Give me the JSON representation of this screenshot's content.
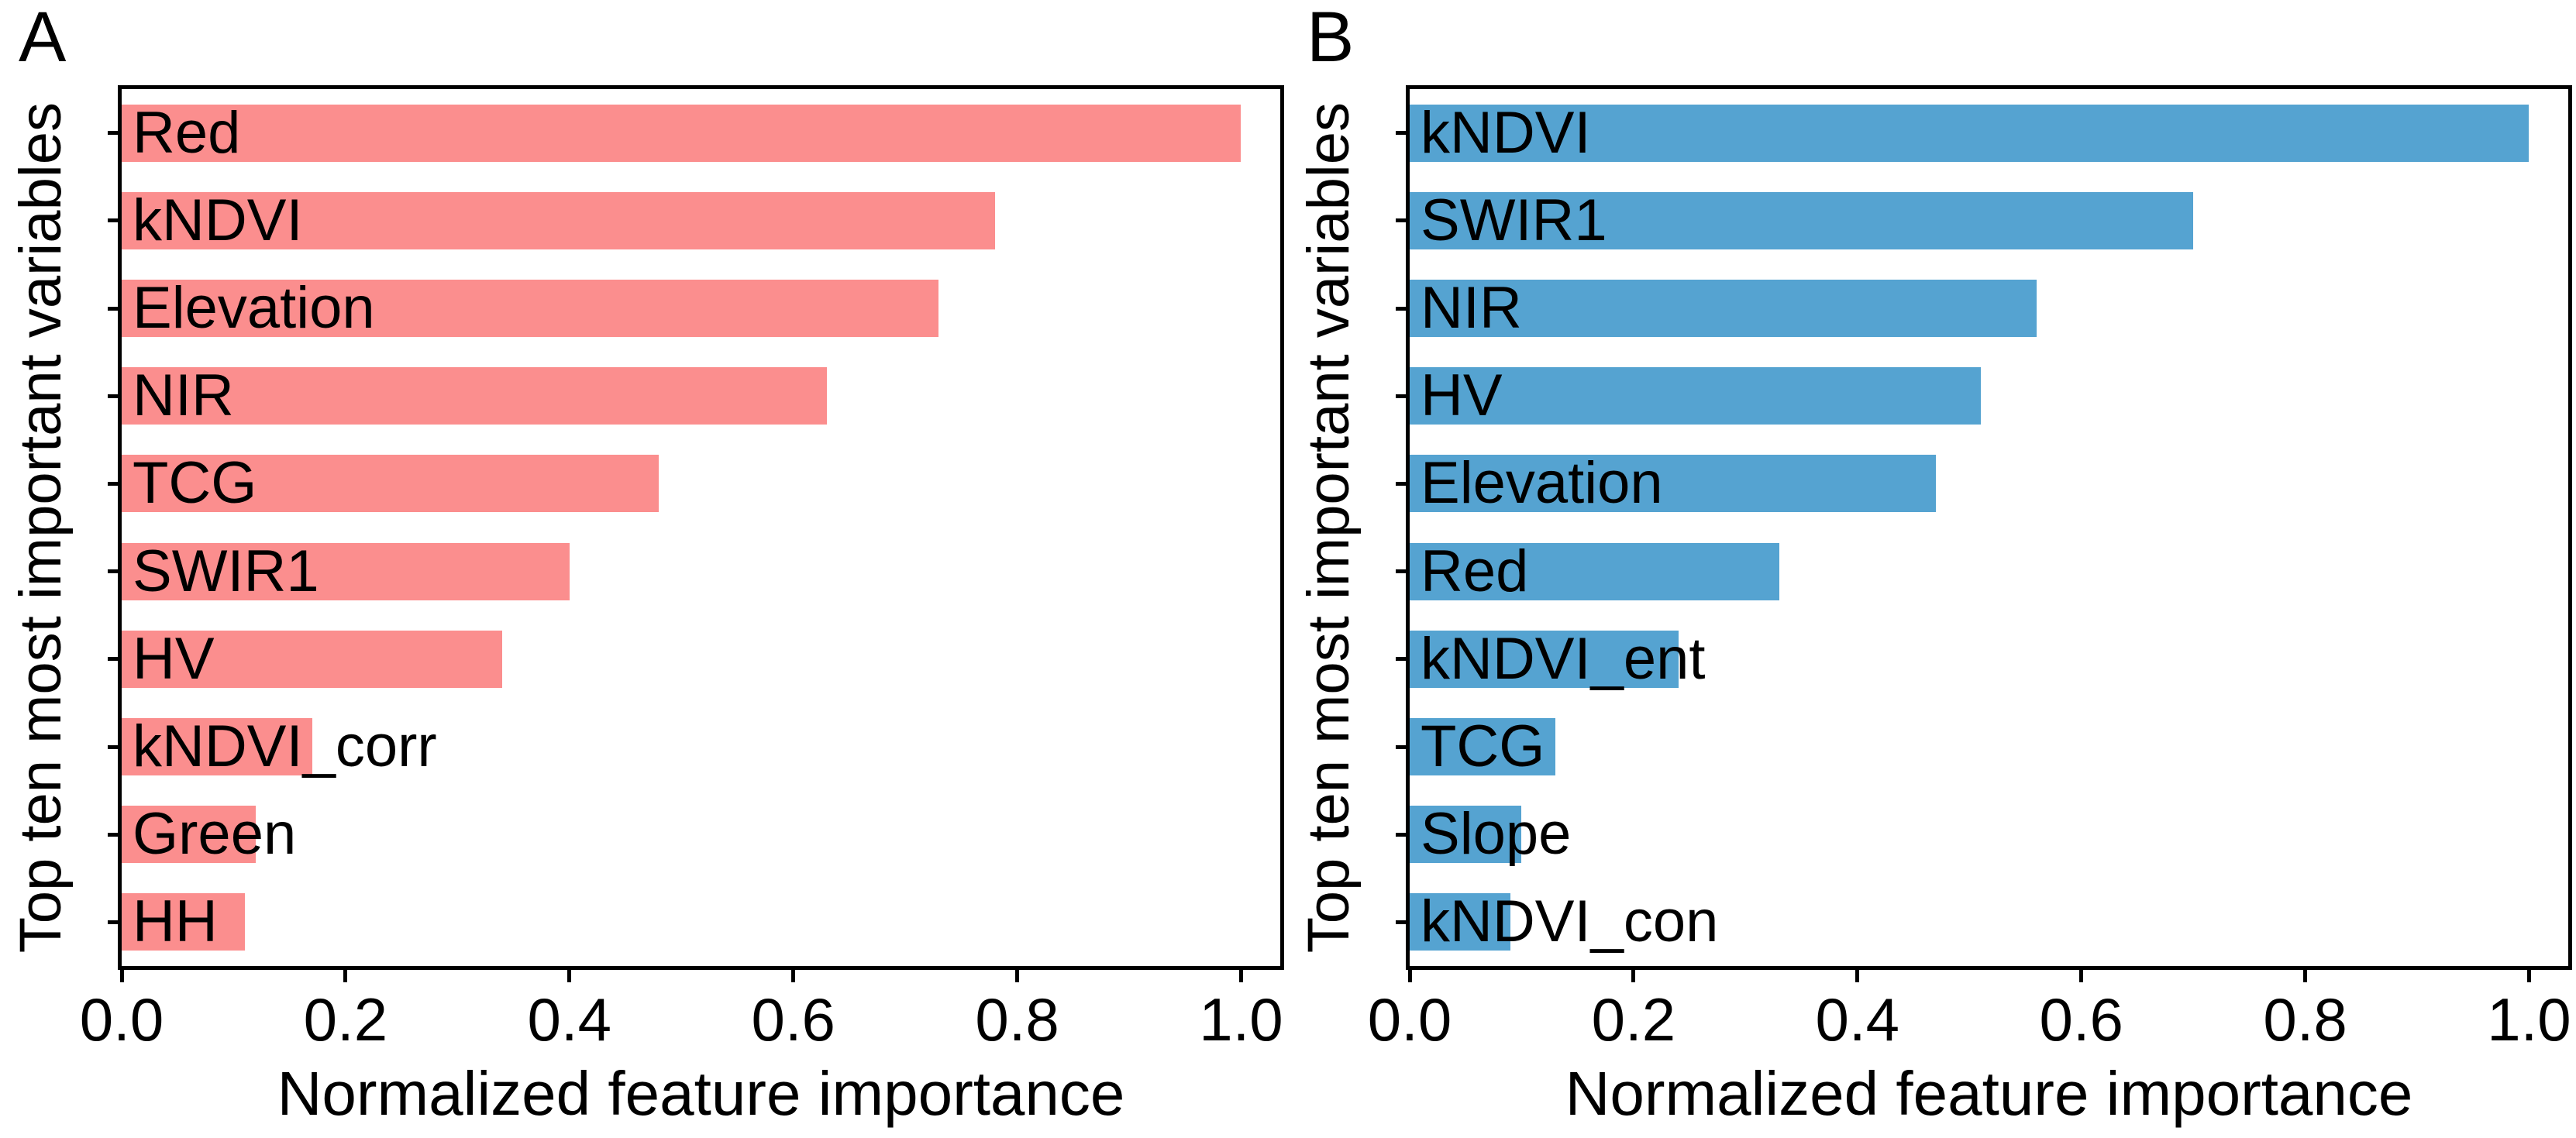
{
  "figure": {
    "background_color": "#ffffff",
    "text_color": "#000000",
    "axis_color": "#000000"
  },
  "chart_data": [
    {
      "type": "bar",
      "orientation": "horizontal",
      "panel_label": "A",
      "categories": [
        "Red",
        "kNDVI",
        "Elevation",
        "NIR",
        "TCG",
        "SWIR1",
        "HV",
        "kNDVI_corr",
        "Green",
        "HH"
      ],
      "values": [
        1.0,
        0.78,
        0.73,
        0.63,
        0.48,
        0.4,
        0.34,
        0.17,
        0.12,
        0.11
      ],
      "bar_color": "#FB8E8E",
      "xlabel": "Normalized feature importance",
      "ylabel": "Top ten most important variables",
      "xlim": [
        0,
        1.035
      ],
      "xticks": [
        0.0,
        0.2,
        0.4,
        0.6,
        0.8,
        1.0
      ],
      "xtick_labels": [
        "0.0",
        "0.2",
        "0.4",
        "0.6",
        "0.8",
        "1.0"
      ],
      "grid": false,
      "legend": false
    },
    {
      "type": "bar",
      "orientation": "horizontal",
      "panel_label": "B",
      "categories": [
        "kNDVI",
        "SWIR1",
        "NIR",
        "HV",
        "Elevation",
        "Red",
        "kNDVI_ent",
        "TCG",
        "Slope",
        "kNDVI_con"
      ],
      "values": [
        1.0,
        0.7,
        0.56,
        0.51,
        0.47,
        0.33,
        0.24,
        0.13,
        0.1,
        0.09
      ],
      "bar_color": "#55A3D1",
      "xlabel": "Normalized feature importance",
      "ylabel": "Top ten most important variables",
      "xlim": [
        0,
        1.035
      ],
      "xticks": [
        0.0,
        0.2,
        0.4,
        0.6,
        0.8,
        1.0
      ],
      "xtick_labels": [
        "0.0",
        "0.2",
        "0.4",
        "0.6",
        "0.8",
        "1.0"
      ],
      "grid": false,
      "legend": false
    }
  ]
}
